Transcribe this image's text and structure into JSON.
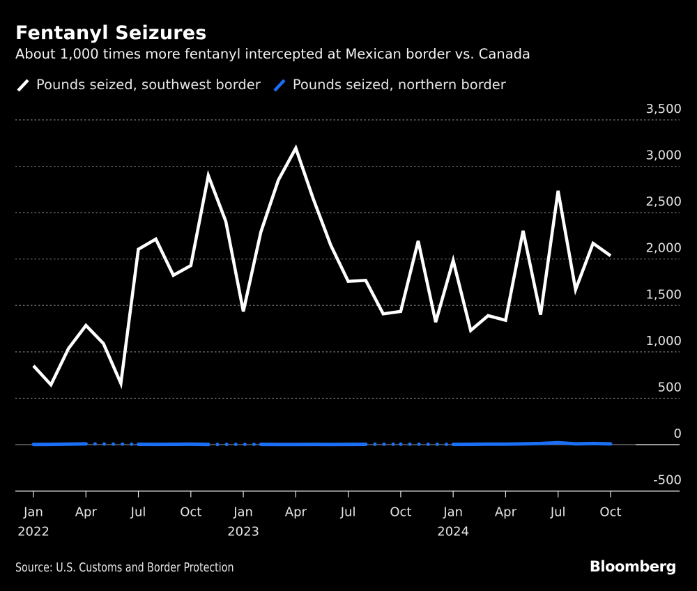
{
  "header": {
    "title": "Fentanyl Seizures",
    "subtitle": "About 1,000 times more fentanyl intercepted at Mexican border vs. Canada"
  },
  "footer": {
    "source": "Source: U.S. Customs and Border Protection",
    "brand": "Bloomberg"
  },
  "colors": {
    "background": "#000000",
    "southwest": "#ffffff",
    "northern": "#1a6ff5",
    "grid": "#7a7a7a",
    "axis": "#e6e6e6"
  },
  "chart_data": {
    "type": "line",
    "title": "Fentanyl Seizures",
    "subtitle": "About 1,000 times more fentanyl intercepted at Mexican border vs. Canada",
    "xlabel": "",
    "ylabel": "",
    "ylim": [
      -500,
      3500
    ],
    "yticks": [
      3500,
      3000,
      2500,
      2000,
      1500,
      1000,
      500,
      0,
      -500
    ],
    "ytick_labels": [
      "3,500",
      "3,000",
      "2,500",
      "2,000",
      "1,500",
      "1,000",
      "500",
      "0",
      "-500"
    ],
    "y_axis_position": "right",
    "grid": true,
    "legend_position": "top-left",
    "x": [
      "2022-01",
      "2022-02",
      "2022-03",
      "2022-04",
      "2022-05",
      "2022-06",
      "2022-07",
      "2022-08",
      "2022-09",
      "2022-10",
      "2022-11",
      "2022-12",
      "2023-01",
      "2023-02",
      "2023-03",
      "2023-04",
      "2023-05",
      "2023-06",
      "2023-07",
      "2023-08",
      "2023-09",
      "2023-10",
      "2023-11",
      "2023-12",
      "2024-01",
      "2024-02",
      "2024-03",
      "2024-04",
      "2024-05",
      "2024-06",
      "2024-07",
      "2024-08",
      "2024-09",
      "2024-10"
    ],
    "xticks": [
      {
        "index": 0,
        "month": "Jan",
        "year": "2022"
      },
      {
        "index": 3,
        "month": "Apr",
        "year": ""
      },
      {
        "index": 6,
        "month": "Jul",
        "year": ""
      },
      {
        "index": 9,
        "month": "Oct",
        "year": ""
      },
      {
        "index": 12,
        "month": "Jan",
        "year": "2023"
      },
      {
        "index": 15,
        "month": "Apr",
        "year": ""
      },
      {
        "index": 18,
        "month": "Jul",
        "year": ""
      },
      {
        "index": 21,
        "month": "Oct",
        "year": ""
      },
      {
        "index": 24,
        "month": "Jan",
        "year": "2024"
      },
      {
        "index": 27,
        "month": "Apr",
        "year": ""
      },
      {
        "index": 30,
        "month": "Jul",
        "year": ""
      },
      {
        "index": 33,
        "month": "Oct",
        "year": ""
      }
    ],
    "series": [
      {
        "name": "Pounds seized, southwest border",
        "color": "#ffffff",
        "values": [
          850,
          645,
          1035,
          1285,
          1090,
          660,
          2105,
          2215,
          1825,
          1930,
          2900,
          2405,
          1435,
          2290,
          2850,
          3195,
          2650,
          2150,
          1760,
          1770,
          1410,
          1435,
          2195,
          1320,
          1985,
          1230,
          1390,
          1340,
          2305,
          1400,
          2735,
          1670,
          2170,
          2035
        ]
      },
      {
        "name": "Pounds seized, northern border",
        "color": "#1a6ff5",
        "values": [
          2,
          3,
          5,
          8,
          null,
          null,
          4,
          3,
          4,
          5,
          2,
          null,
          null,
          3,
          2,
          2,
          3,
          2,
          3,
          4,
          null,
          5,
          null,
          null,
          3,
          4,
          5,
          6,
          8,
          12,
          20,
          8,
          12,
          8
        ],
        "gaps_rendered_as": "dotted"
      }
    ]
  }
}
